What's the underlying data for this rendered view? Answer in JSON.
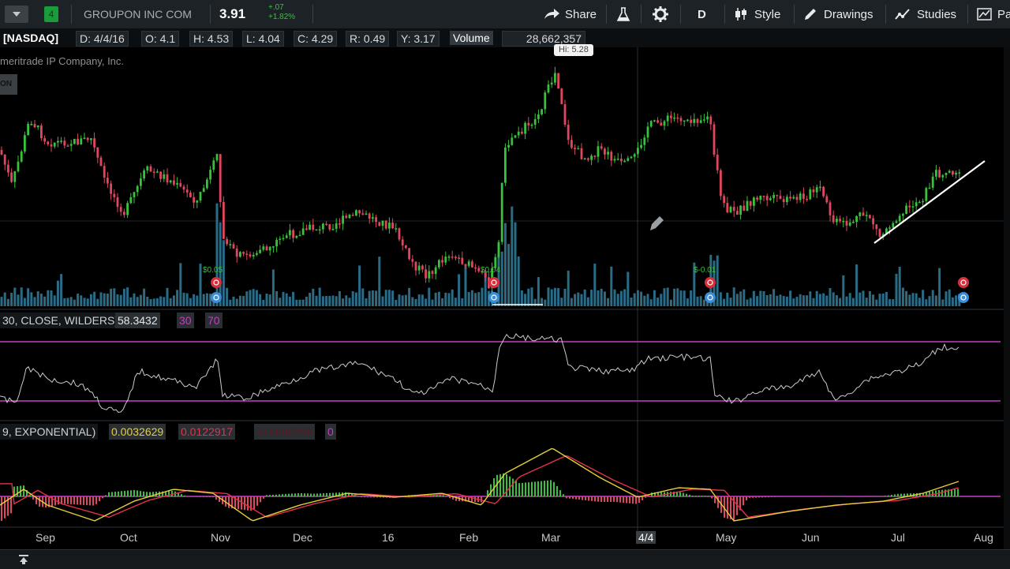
{
  "toolbar": {
    "flag_number": "4",
    "company": "GROUPON INC COM",
    "price": "3.91",
    "change": "+.07",
    "change_pct": "+1.82%",
    "share": "Share",
    "aggregation": "D",
    "style": "Style",
    "drawings": "Drawings",
    "studies": "Studies",
    "more": "Pa"
  },
  "info": {
    "exchange": "[NASDAQ]",
    "date": "D: 4/4/16",
    "open": "O: 4.1",
    "high": "H: 4.53",
    "low": "L: 4.04",
    "close": "C: 4.29",
    "range": "R: 0.49",
    "y": "Y: 3.17",
    "volume_label": "Volume",
    "volume_value": "28,662,357",
    "watermark": "meritrade IP Company, Inc."
  },
  "price_panel": {
    "high_label": "Hi: 5.28",
    "earnings": [
      "$0.05",
      "$0.04",
      "$-0.01"
    ]
  },
  "rsi_panel": {
    "label": "30, CLOSE, WILDERS)",
    "value": "58.3432",
    "oversold": "30",
    "overbought": "70"
  },
  "macd_panel": {
    "label": "9, EXPONENTIAL)",
    "value": "0.0032629",
    "avg": "0.0122917",
    "diff": "-0.0090288",
    "zero": "0"
  },
  "x_axis": [
    "Sep",
    "Oct",
    "Nov",
    "Dec",
    "16",
    "Feb",
    "Mar",
    "4/4",
    "May",
    "Jun",
    "Jul",
    "Aug"
  ],
  "colors": {
    "up": "#38c23c",
    "down": "#e0475f",
    "volume": "#2a6b86",
    "rsi_band": "#c53ec0",
    "macd": "#e6cf3c",
    "macd_avg": "#e2324b"
  },
  "chart_data": {
    "type": "line",
    "x": [
      "Sep",
      "Oct",
      "Nov",
      "Dec",
      "16",
      "Feb",
      "Mar",
      "Apr",
      "May",
      "Jun",
      "Jul"
    ],
    "series": [
      {
        "values": [
          4.6,
          4.3,
          4.4,
          3.7,
          3.5,
          2.9,
          5.0,
          4.3,
          3.8,
          3.6,
          3.91
        ]
      }
    ],
    "high": 5.28,
    "last": 3.91
  }
}
